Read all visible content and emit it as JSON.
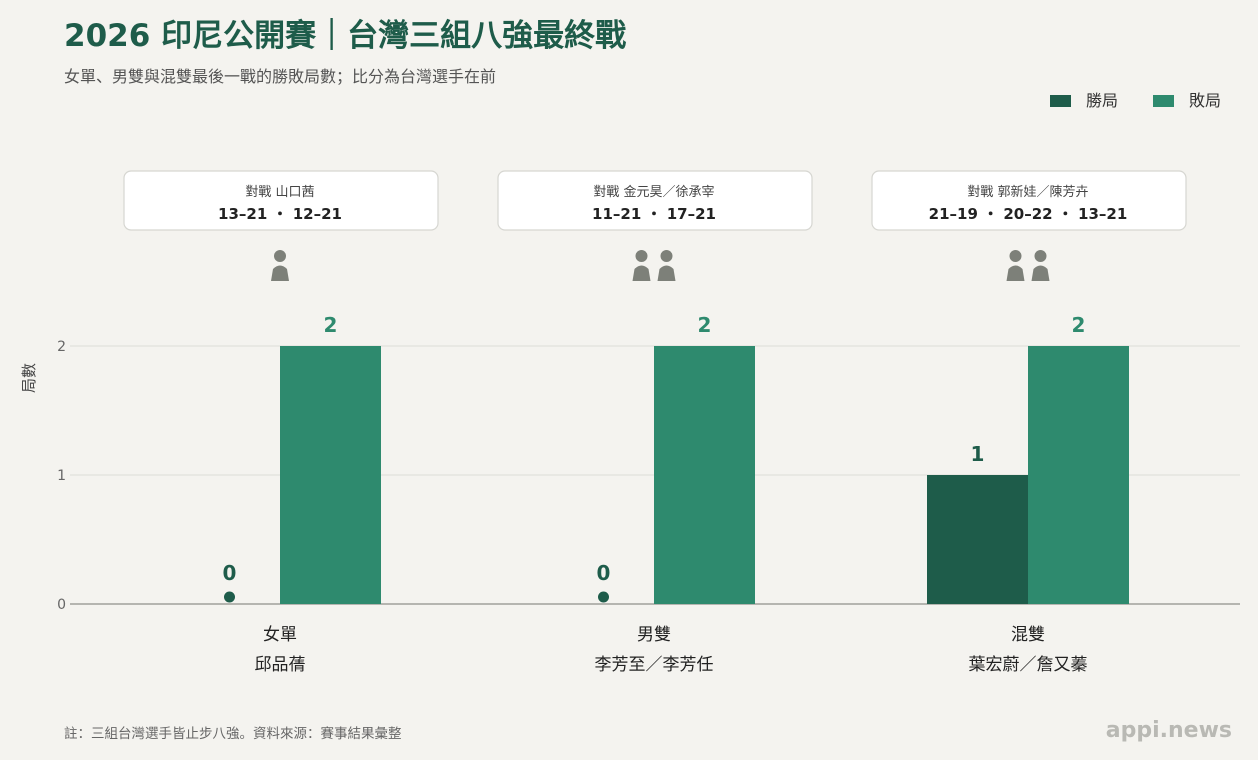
{
  "colors": {
    "win": "#1e5c4a",
    "loss": "#2e8a6e",
    "person": "#7d8079",
    "title": "#1e5c4a"
  },
  "chart_data": {
    "type": "bar",
    "title": "2026 印尼公開賽｜台灣三組八強最終戰",
    "subtitle": "女單、男雙與混雙最後一戰的勝敗局數；比分為台灣選手在前",
    "ylabel": "局數",
    "ylim": [
      0,
      2
    ],
    "yticks": [
      0,
      1,
      2
    ],
    "grid": true,
    "legend_position": "top-right",
    "categories": [
      {
        "event": "女單",
        "players": "邱品蒨",
        "opponent_label": "對戰 山口茜",
        "scores": "13–21 ・ 12–21",
        "team_size": 1
      },
      {
        "event": "男雙",
        "players": "李芳至／李芳任",
        "opponent_label": "對戰 金元昊／徐承宰",
        "scores": "11–21 ・ 17–21",
        "team_size": 2
      },
      {
        "event": "混雙",
        "players": "葉宏蔚／詹又蓁",
        "opponent_label": "對戰 郭新娃／陳芳卉",
        "scores": "21–19 ・ 20–22 ・ 13–21",
        "team_size": 2
      }
    ],
    "series": [
      {
        "name": "勝局",
        "values": [
          0,
          0,
          1
        ]
      },
      {
        "name": "敗局",
        "values": [
          2,
          2,
          2
        ]
      }
    ]
  },
  "footnote": "註：三組台灣選手皆止步八強。資料來源：賽事結果彙整",
  "brand": "appi.news"
}
